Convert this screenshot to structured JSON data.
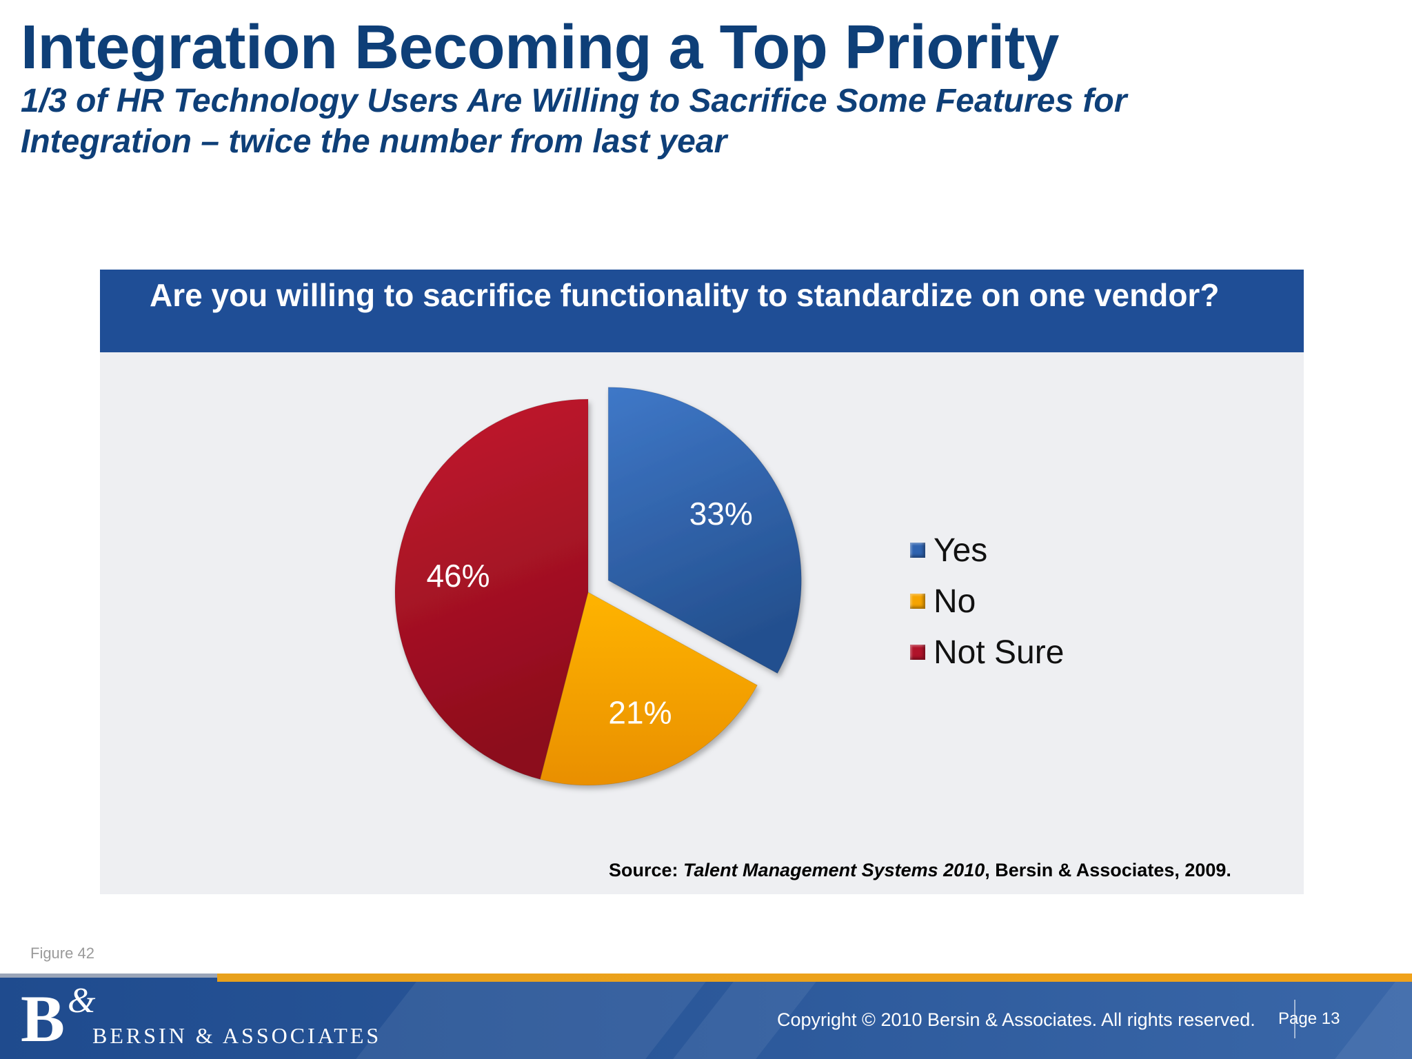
{
  "slide": {
    "title": "Integration Becoming a Top Priority",
    "subtitle": "1/3 of HR Technology Users Are Willing to Sacrifice Some Features for Integration – twice the number from last year"
  },
  "chart_data": {
    "type": "pie",
    "title": "Are you willing to sacrifice functionality to standardize on one vendor?",
    "categories": [
      "Yes",
      "No",
      "Not Sure"
    ],
    "values": [
      33,
      21,
      46
    ],
    "data_labels": [
      "33%",
      "21%",
      "46%"
    ],
    "colors": [
      "#2f63b0",
      "#f6a400",
      "#b0132a"
    ],
    "exploded": [
      "Yes"
    ],
    "legend_position": "right",
    "source_label": "Source:",
    "source_title": "Talent Management Systems 2010",
    "source_rest": ",  Bersin & Associates, 2009."
  },
  "figure_label": "Figure 42",
  "footer": {
    "logo_letters": "B",
    "logo_amp": "&",
    "logo_text": "BERSIN & ASSOCIATES",
    "copyright": "Copyright © 2010 Bersin & Associates. All rights reserved.",
    "page": "Page 13"
  }
}
